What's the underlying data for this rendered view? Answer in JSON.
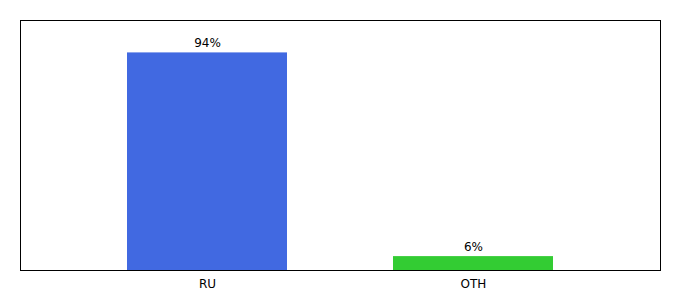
{
  "chart_data": {
    "type": "bar",
    "categories": [
      "RU",
      "OTH"
    ],
    "values": [
      94,
      6
    ],
    "colors": [
      "#4169e1",
      "#33cc33"
    ],
    "value_labels": [
      "94%",
      "6%"
    ],
    "data_labels": true,
    "ylim": [
      0,
      108
    ],
    "tick_labels": "x"
  }
}
